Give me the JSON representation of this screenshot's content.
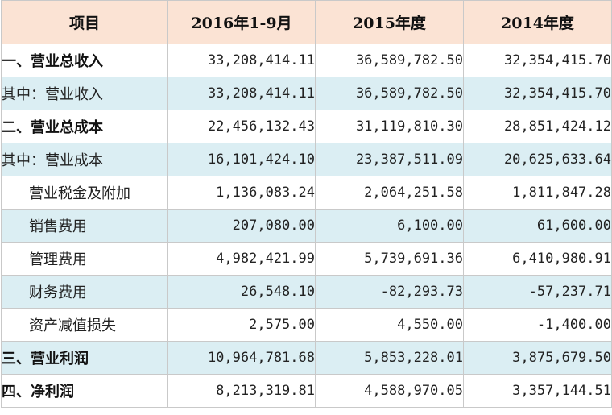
{
  "table": {
    "headers": [
      "项目",
      "2016年1-9月",
      "2015年度",
      "2014年度"
    ],
    "rows": [
      {
        "label": "一、营业总收入",
        "bold": true,
        "indent": false,
        "band": false,
        "values": [
          "33,208,414.11",
          "36,589,782.50",
          "32,354,415.70"
        ]
      },
      {
        "label": "其中：营业收入",
        "bold": false,
        "indent": false,
        "band": true,
        "values": [
          "33,208,414.11",
          "36,589,782.50",
          "32,354,415.70"
        ]
      },
      {
        "label": "二、营业总成本",
        "bold": true,
        "indent": false,
        "band": false,
        "values": [
          "22,456,132.43",
          "31,119,810.30",
          "28,851,424.12"
        ]
      },
      {
        "label": "其中：营业成本",
        "bold": false,
        "indent": false,
        "band": true,
        "values": [
          "16,101,424.10",
          "23,387,511.09",
          "20,625,633.64"
        ]
      },
      {
        "label": "营业税金及附加",
        "bold": false,
        "indent": true,
        "band": false,
        "values": [
          "1,136,083.24",
          "2,064,251.58",
          "1,811,847.28"
        ]
      },
      {
        "label": "销售费用",
        "bold": false,
        "indent": true,
        "band": true,
        "values": [
          "207,080.00",
          "6,100.00",
          "61,600.00"
        ]
      },
      {
        "label": "管理费用",
        "bold": false,
        "indent": true,
        "band": false,
        "values": [
          "4,982,421.99",
          "5,739,691.36",
          "6,410,980.91"
        ]
      },
      {
        "label": "财务费用",
        "bold": false,
        "indent": true,
        "band": true,
        "values": [
          "26,548.10",
          "-82,293.73",
          "-57,237.71"
        ]
      },
      {
        "label": "资产减值损失",
        "bold": false,
        "indent": true,
        "band": false,
        "values": [
          "2,575.00",
          "4,550.00",
          "-1,400.00"
        ]
      },
      {
        "label": "三、营业利润",
        "bold": true,
        "indent": false,
        "band": true,
        "values": [
          "10,964,781.68",
          "5,853,228.01",
          "3,875,679.50"
        ]
      },
      {
        "label": "四、净利润",
        "bold": true,
        "indent": false,
        "band": false,
        "values": [
          "8,213,319.81",
          "4,588,970.05",
          "3,357,144.51"
        ]
      }
    ]
  }
}
